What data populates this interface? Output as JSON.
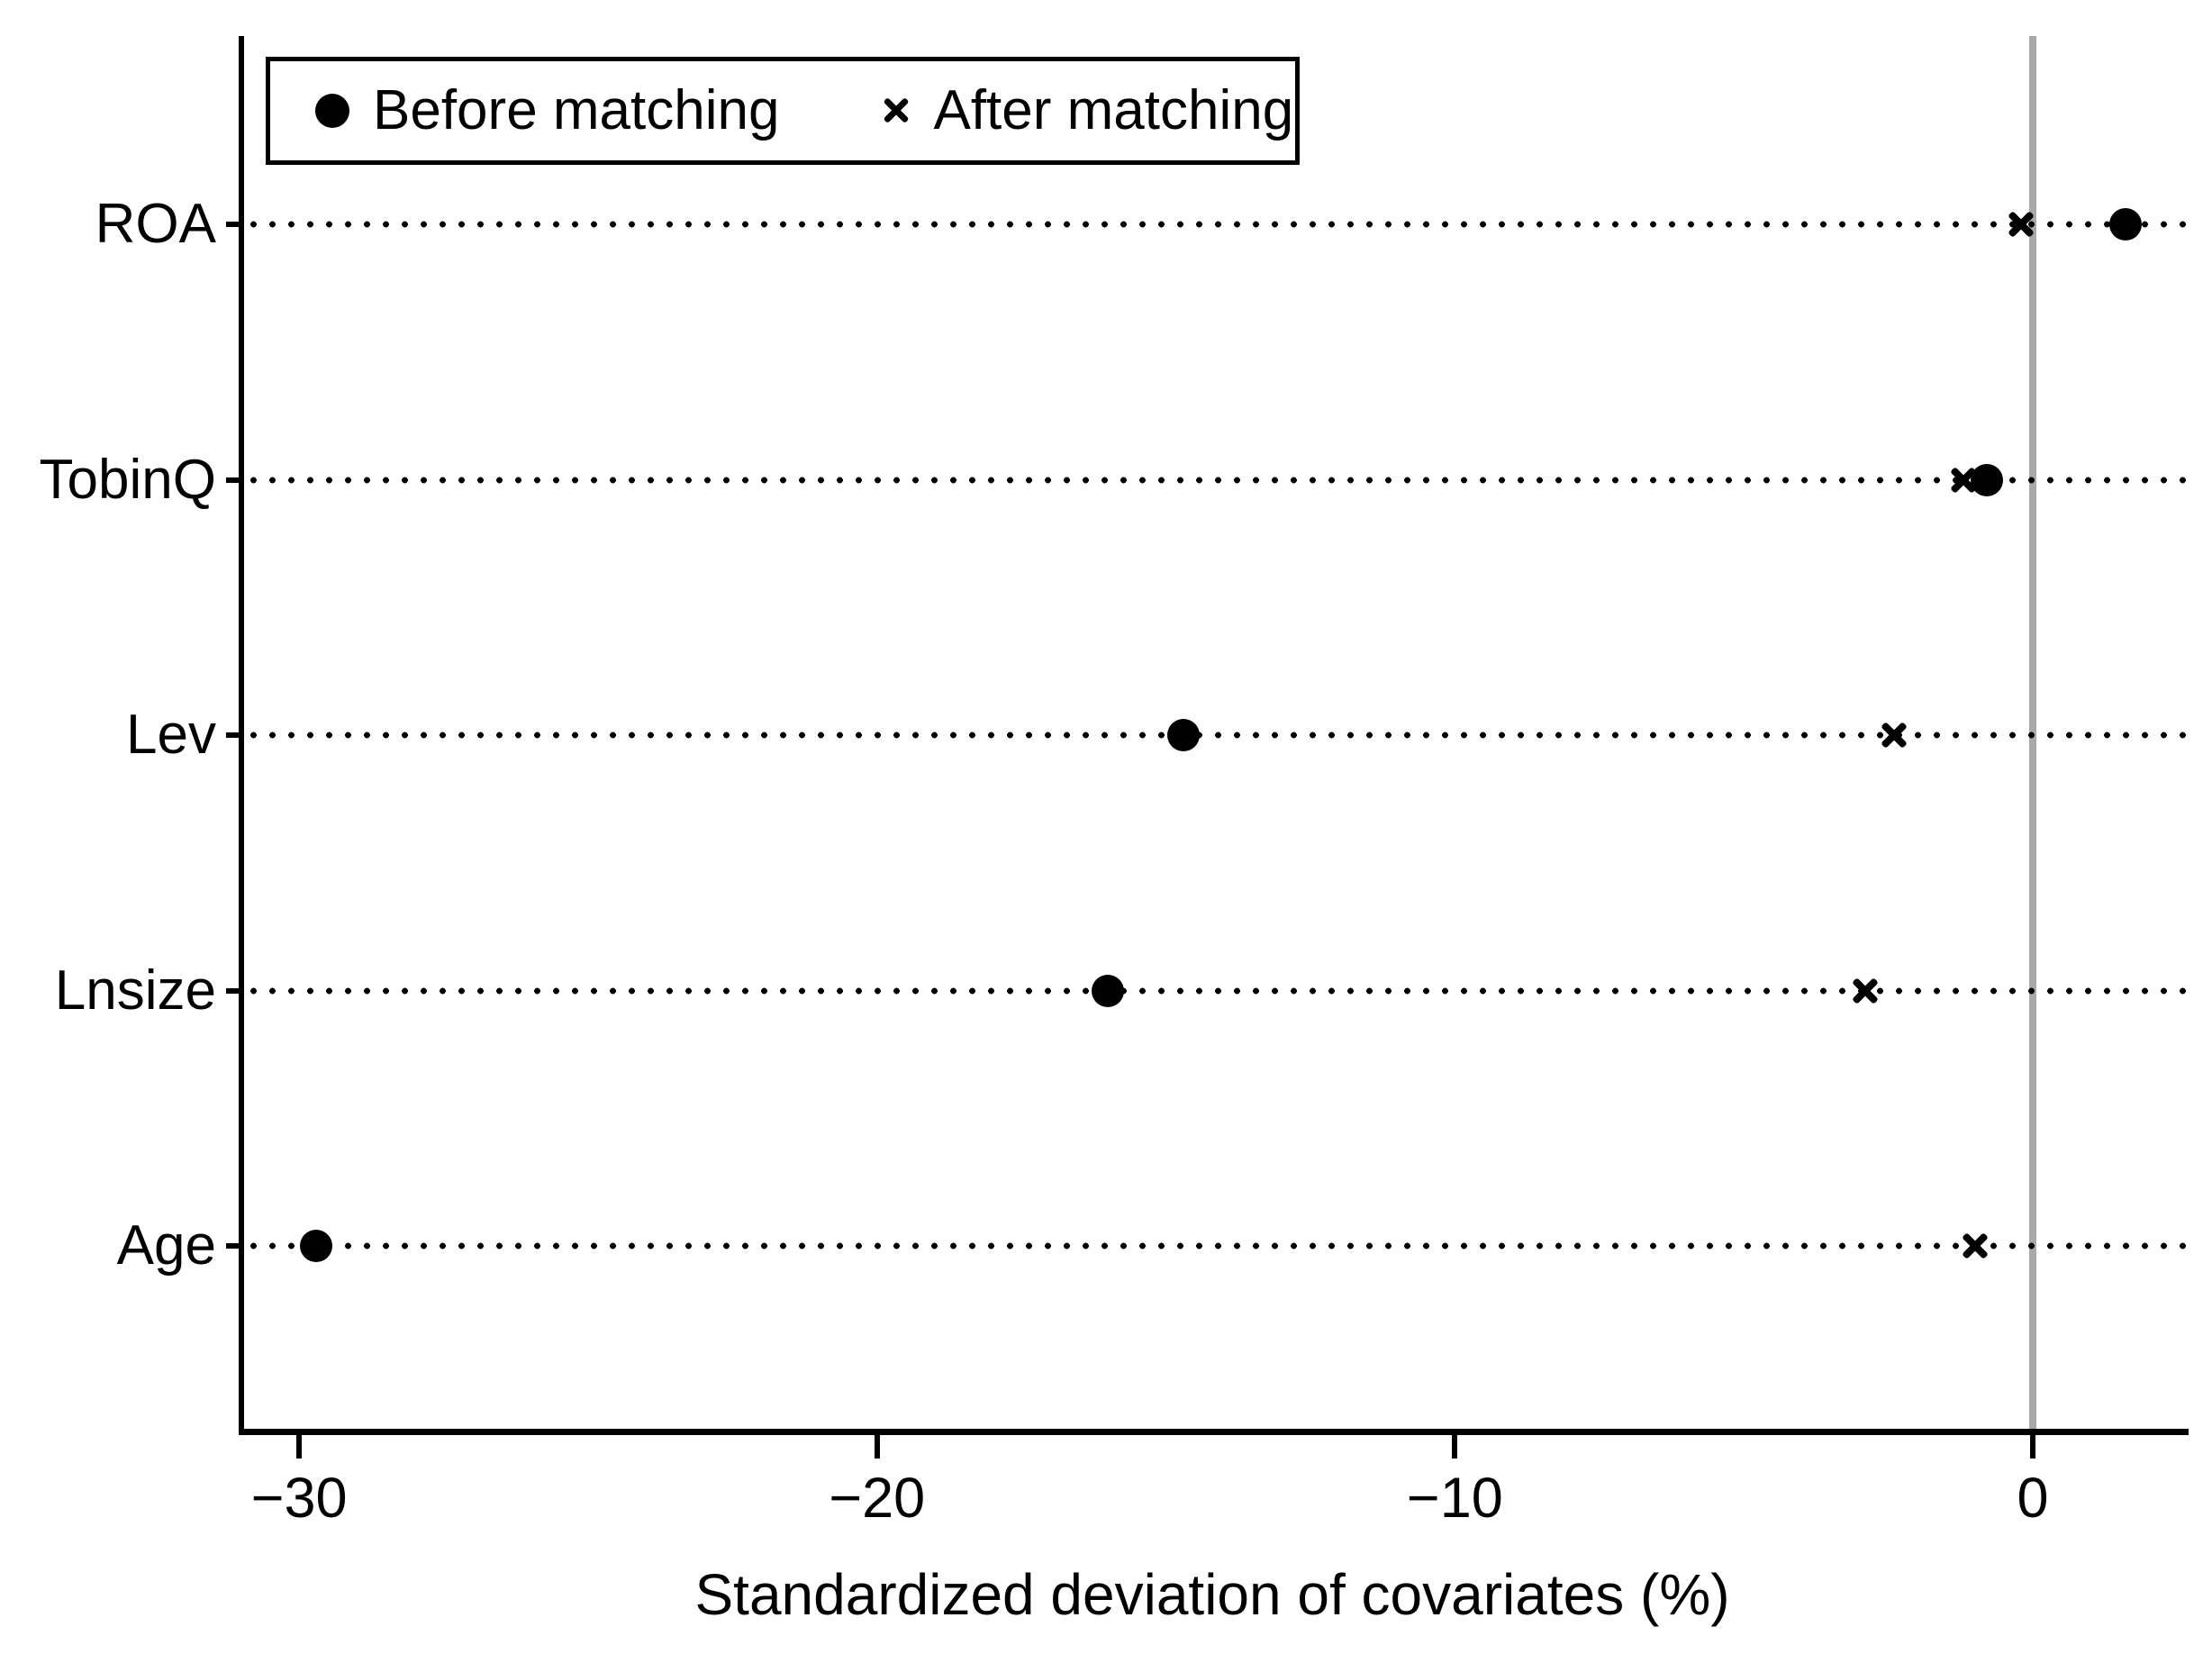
{
  "chart_data": {
    "type": "scatter",
    "subtype": "horizontal-dot-plot",
    "title": "",
    "xlabel": "Standardized deviation of covariates (%)",
    "categories": [
      "ROA",
      "TobinQ",
      "Lev",
      "Lnsize",
      "Age"
    ],
    "series": [
      {
        "name": "Before matching",
        "marker": "circle",
        "values": [
          1.6,
          -0.8,
          -14.7,
          -16.0,
          -29.7
        ]
      },
      {
        "name": "After matching",
        "marker": "x",
        "values": [
          -0.2,
          -1.2,
          -2.4,
          -2.9,
          -1.0
        ]
      }
    ],
    "xticks": [
      -30,
      -20,
      -10,
      0
    ],
    "xtick_labels": [
      "−30",
      "−20",
      "−10",
      "0"
    ],
    "xlim": [
      -31.0,
      2.65
    ],
    "reference_line_x": 0,
    "grid": "dotted horizontal category lines",
    "legend_position": "top-left inside plot"
  },
  "colors": {
    "marker": "#000000",
    "axis": "#000000",
    "reference_line": "#a9a9a9",
    "background": "#ffffff"
  }
}
